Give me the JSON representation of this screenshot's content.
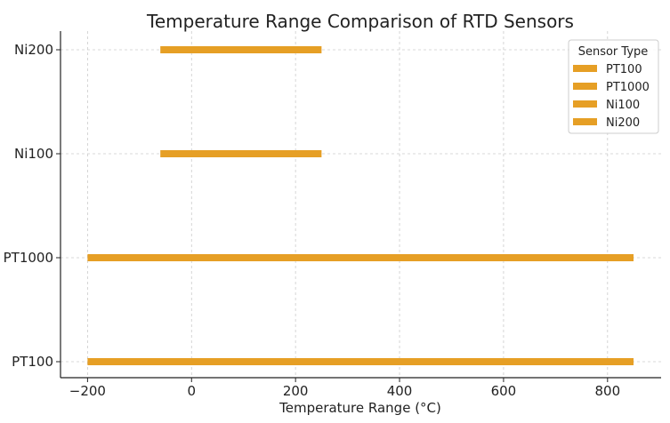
{
  "chart_data": {
    "type": "bar",
    "orientation": "horizontal-range",
    "title": "Temperature Range Comparison of RTD Sensors",
    "xlabel": "Temperature Range (°C)",
    "ylabel": "",
    "xlim": [
      -252,
      903
    ],
    "xticks": [
      -200,
      0,
      200,
      400,
      600,
      800
    ],
    "xtick_labels": [
      "−200",
      "0",
      "200",
      "400",
      "600",
      "800"
    ],
    "categories": [
      "PT100",
      "PT1000",
      "Ni100",
      "Ni200"
    ],
    "ranges": [
      {
        "name": "PT100",
        "min": -200,
        "max": 850
      },
      {
        "name": "PT1000",
        "min": -200,
        "max": 850
      },
      {
        "name": "Ni100",
        "min": -60,
        "max": 250
      },
      {
        "name": "Ni200",
        "min": -60,
        "max": 250
      }
    ],
    "grid": true,
    "legend": {
      "title": "Sensor Type",
      "placement": "top-right",
      "entries": [
        "PT100",
        "PT1000",
        "Ni100",
        "Ni200"
      ]
    },
    "color": "#E69F25"
  }
}
